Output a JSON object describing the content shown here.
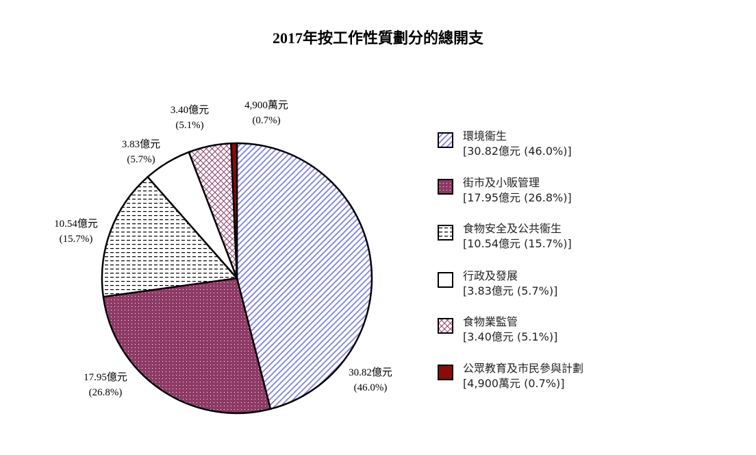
{
  "chart_data": {
    "type": "pie",
    "title": "2017年按工作性質劃分的總開支",
    "start_angle": "12 o'clock",
    "direction": "clockwise",
    "legend_position": "right",
    "slices": [
      {
        "name": "環境衞生",
        "amount": "30.82億元",
        "percent": 46.0,
        "percent_label": "(46.0%)",
        "legend_value": "[30.82億元 (46.0%)]",
        "color": "#8a8ae0",
        "pattern": "diagonal-lines"
      },
      {
        "name": "街市及小販管理",
        "amount": "17.95億元",
        "percent": 26.8,
        "percent_label": "(26.8%)",
        "legend_value": "[17.95億元 (26.8%)]",
        "color": "#8e3a66",
        "pattern": "dots"
      },
      {
        "name": "食物安全及公共衞生",
        "amount": "10.54億元",
        "percent": 15.7,
        "percent_label": "(15.7%)",
        "legend_value": "[10.54億元 (15.7%)]",
        "color": "#000000",
        "pattern": "dashes"
      },
      {
        "name": "行政及發展",
        "amount": "3.83億元",
        "percent": 5.7,
        "percent_label": "(5.7%)",
        "legend_value": "[3.83億元 (5.7%)]",
        "color": "#ffffff",
        "pattern": "solid"
      },
      {
        "name": "食物業監管",
        "amount": "3.40億元",
        "percent": 5.1,
        "percent_label": "(5.1%)",
        "legend_value": "[3.40億元 (5.1%)]",
        "color": "#8e3a66",
        "pattern": "crosshatch"
      },
      {
        "name": "公眾教育及市民參與計劃",
        "amount": "4,900萬元",
        "percent": 0.7,
        "percent_label": "(0.7%)",
        "legend_value": "[4,900萬元 (0.7%)]",
        "color": "#8b0a0a",
        "pattern": "solid"
      }
    ]
  }
}
